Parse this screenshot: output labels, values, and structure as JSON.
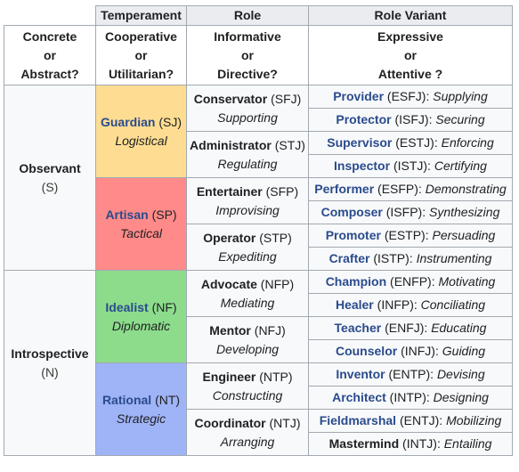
{
  "headers": {
    "temperament": "Temperament",
    "role": "Role",
    "role_variant": "Role Variant"
  },
  "criteria": {
    "col1": [
      "Concrete",
      "or",
      "Abstract?"
    ],
    "col2": [
      "Cooperative",
      "or",
      "Utilitarian?"
    ],
    "col3": [
      "Informative",
      "or",
      "Directive?"
    ],
    "col4": [
      "Expressive",
      "or",
      "Attentive ?"
    ]
  },
  "groups": [
    {
      "name": "Observant",
      "code": "(S)"
    },
    {
      "name": "Introspective",
      "code": "(N)"
    }
  ],
  "temperaments": [
    {
      "name": "Guardian",
      "code": "(SJ)",
      "trait": "Logistical",
      "color": "#fedd92"
    },
    {
      "name": "Artisan",
      "code": "(SP)",
      "trait": "Tactical",
      "color": "#ff8a8a"
    },
    {
      "name": "Idealist",
      "code": "(NF)",
      "trait": "Diplomatic",
      "color": "#8cdc8c"
    },
    {
      "name": "Rational",
      "code": "(NT)",
      "trait": "Strategic",
      "color": "#9fb3f7"
    }
  ],
  "roles": [
    {
      "name": "Conservator",
      "code": "(SFJ)",
      "trait": "Supporting"
    },
    {
      "name": "Administrator",
      "code": "(STJ)",
      "trait": "Regulating"
    },
    {
      "name": "Entertainer",
      "code": "(SFP)",
      "trait": "Improvising"
    },
    {
      "name": "Operator",
      "code": "(STP)",
      "trait": "Expediting"
    },
    {
      "name": "Advocate",
      "code": "(NFP)",
      "trait": "Mediating"
    },
    {
      "name": "Mentor",
      "code": "(NFJ)",
      "trait": "Developing"
    },
    {
      "name": "Engineer",
      "code": "(NTP)",
      "trait": "Constructing"
    },
    {
      "name": "Coordinator",
      "code": "(NTJ)",
      "trait": "Arranging"
    }
  ],
  "variants": [
    {
      "name": "Provider",
      "code": "(ESFJ)",
      "trait": "Supplying"
    },
    {
      "name": "Protector",
      "code": "(ISFJ)",
      "trait": "Securing"
    },
    {
      "name": "Supervisor",
      "code": "(ESTJ)",
      "trait": "Enforcing"
    },
    {
      "name": "Inspector",
      "code": "(ISTJ)",
      "trait": "Certifying"
    },
    {
      "name": "Performer",
      "code": "(ESFP)",
      "trait": "Demonstrating"
    },
    {
      "name": "Composer",
      "code": "(ISFP)",
      "trait": "Synthesizing"
    },
    {
      "name": "Promoter",
      "code": "(ESTP)",
      "trait": "Persuading"
    },
    {
      "name": "Crafter",
      "code": "(ISTP)",
      "trait": "Instrumenting"
    },
    {
      "name": "Champion",
      "code": "(ENFP)",
      "trait": "Motivating"
    },
    {
      "name": "Healer",
      "code": "(INFP)",
      "trait": "Conciliating"
    },
    {
      "name": "Teacher",
      "code": "(ENFJ)",
      "trait": "Educating"
    },
    {
      "name": "Counselor",
      "code": "(INFJ)",
      "trait": "Guiding"
    },
    {
      "name": "Inventor",
      "code": "(ENTP)",
      "trait": "Devising"
    },
    {
      "name": "Architect",
      "code": "(INTP)",
      "trait": "Designing"
    },
    {
      "name": "Fieldmarshal",
      "code": "(ENTJ)",
      "trait": "Mobilizing"
    },
    {
      "name": "Mastermind",
      "code": "(INTJ)",
      "trait": "Entailing"
    }
  ]
}
